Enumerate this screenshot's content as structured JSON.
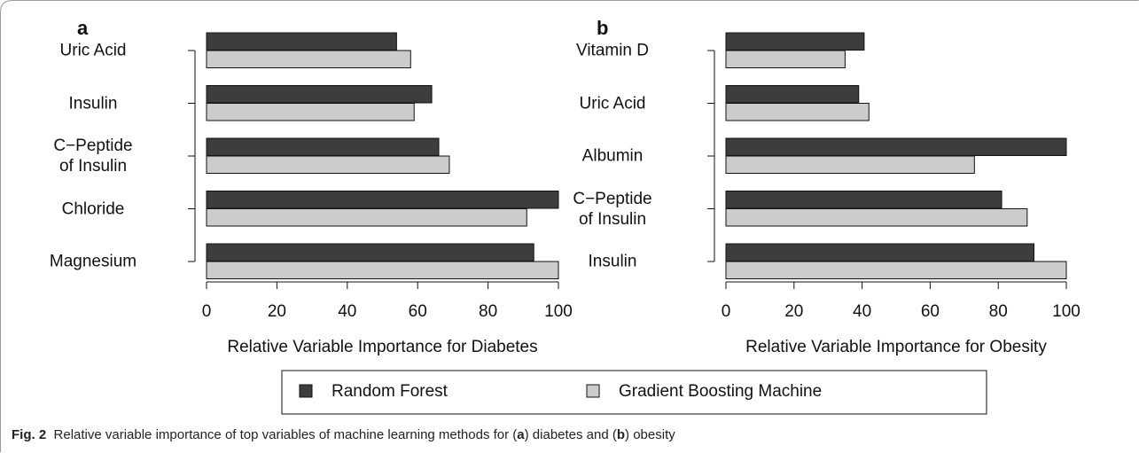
{
  "chart_data": [
    {
      "type": "bar",
      "panel_label": "a",
      "xlabel": "Relative Variable Importance for Diabetes",
      "categories": [
        "Uric Acid",
        "Insulin",
        "C−Peptide\nof Insulin",
        "Chloride",
        "Magnesium"
      ],
      "series": [
        {
          "name": "Random Forest",
          "color": "#3d3d3d",
          "values": [
            54,
            64,
            66,
            100,
            93
          ]
        },
        {
          "name": "Gradient Boosting Machine",
          "color": "#cccccc",
          "values": [
            58,
            59,
            69,
            91,
            100
          ]
        }
      ],
      "xlim": [
        0,
        100
      ],
      "xticks": [
        0,
        20,
        40,
        60,
        80,
        100
      ]
    },
    {
      "type": "bar",
      "panel_label": "b",
      "xlabel": "Relative Variable Importance for Obesity",
      "categories": [
        "Vitamin D",
        "Uric Acid",
        "Albumin",
        "C−Peptide\nof Insulin",
        "Insulin"
      ],
      "series": [
        {
          "name": "Random Forest",
          "color": "#3d3d3d",
          "values": [
            40.6,
            39,
            100,
            81,
            90.5
          ]
        },
        {
          "name": "Gradient Boosting Machine",
          "color": "#cccccc",
          "values": [
            35,
            42,
            73,
            88.5,
            100
          ]
        }
      ],
      "xlim": [
        0,
        100
      ],
      "xticks": [
        0,
        20,
        40,
        60,
        80,
        100
      ]
    }
  ],
  "caption": {
    "label": "Fig. 2",
    "parts": [
      "Relative variable importance of top variables of machine learning methods for (",
      "a",
      ") diabetes and (",
      "b",
      ") obesity"
    ]
  }
}
